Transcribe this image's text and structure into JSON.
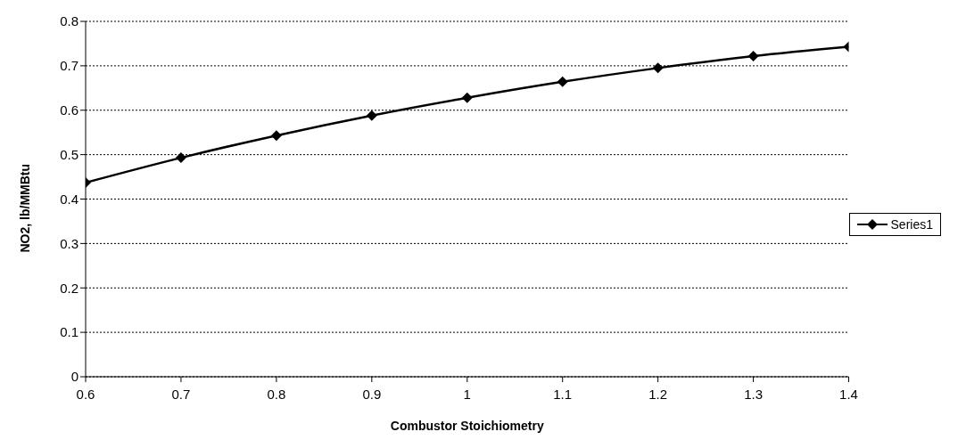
{
  "chart_data": {
    "type": "line",
    "xlabel": "Combustor Stoichiometry",
    "ylabel": "NO2, lb/MMBtu",
    "x": [
      0.6,
      0.7,
      0.8,
      0.9,
      1,
      1.1,
      1.2,
      1.3,
      1.4
    ],
    "series": [
      {
        "name": "Series1",
        "color": "#000000",
        "values": [
          0.437,
          0.493,
          0.543,
          0.588,
          0.628,
          0.664,
          0.695,
          0.722,
          0.743
        ]
      }
    ],
    "xlim": [
      0.6,
      1.4
    ],
    "xticks": [
      0.6,
      0.7,
      0.8,
      0.9,
      1,
      1.1,
      1.2,
      1.3,
      1.4
    ],
    "ylim": [
      0,
      0.8
    ],
    "yticks": [
      0,
      0.1,
      0.2,
      0.3,
      0.4,
      0.5,
      0.6,
      0.7,
      0.8
    ],
    "grid": "y",
    "legend": "right",
    "marker": "diamond",
    "line_style": "solid"
  }
}
